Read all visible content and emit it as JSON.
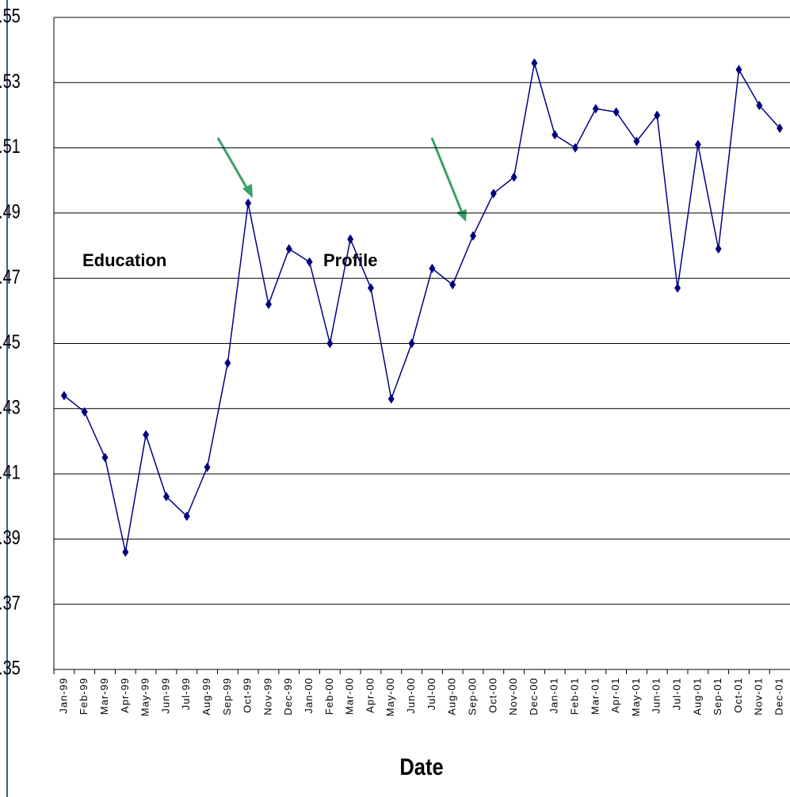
{
  "chart_data": {
    "type": "line",
    "categories": [
      "Jan-99",
      "Feb-99",
      "Mar-99",
      "Apr-99",
      "May-99",
      "Jun-99",
      "Jul-99",
      "Aug-99",
      "Sep-99",
      "Oct-99",
      "Nov-99",
      "Dec-99",
      "Jan-00",
      "Feb-00",
      "Mar-00",
      "Apr-00",
      "May-00",
      "Jun-00",
      "Jul-00",
      "Aug-00",
      "Sep-00",
      "Oct-00",
      "Nov-00",
      "Dec-00",
      "Jan-01",
      "Feb-01",
      "Mar-01",
      "Apr-01",
      "May-01",
      "Jun-01",
      "Jul-01",
      "Aug-01",
      "Sep-01",
      "Oct-01",
      "Nov-01",
      "Dec-01"
    ],
    "values": [
      0.434,
      0.429,
      0.415,
      0.386,
      0.422,
      0.403,
      0.397,
      0.412,
      0.444,
      0.493,
      0.462,
      0.479,
      0.475,
      0.45,
      0.482,
      0.467,
      0.433,
      0.45,
      0.473,
      0.468,
      0.483,
      0.496,
      0.501,
      0.536,
      0.514,
      0.51,
      0.522,
      0.521,
      0.512,
      0.52,
      0.467,
      0.511,
      0.479,
      0.534,
      0.523,
      0.516
    ],
    "color": "#000080",
    "x_label": "Date",
    "annotations": [
      "Education",
      "Profile"
    ],
    "ylim": [
      0.35,
      0.55
    ],
    "yticks": [
      {
        "value": 0.35,
        "label": ".35"
      },
      {
        "value": 0.37,
        "label": ".37"
      },
      {
        "value": 0.39,
        "label": ".39"
      },
      {
        "value": 0.41,
        "label": ".41"
      },
      {
        "value": 0.43,
        "label": ".43"
      },
      {
        "value": 0.45,
        "label": ".45"
      },
      {
        "value": 0.47,
        "label": ".47"
      },
      {
        "value": 0.49,
        "label": ".49"
      },
      {
        "value": 0.51,
        "label": ".51"
      },
      {
        "value": 0.53,
        "label": ".53"
      },
      {
        "value": 0.55,
        "label": ".55"
      }
    ],
    "grid": true
  }
}
